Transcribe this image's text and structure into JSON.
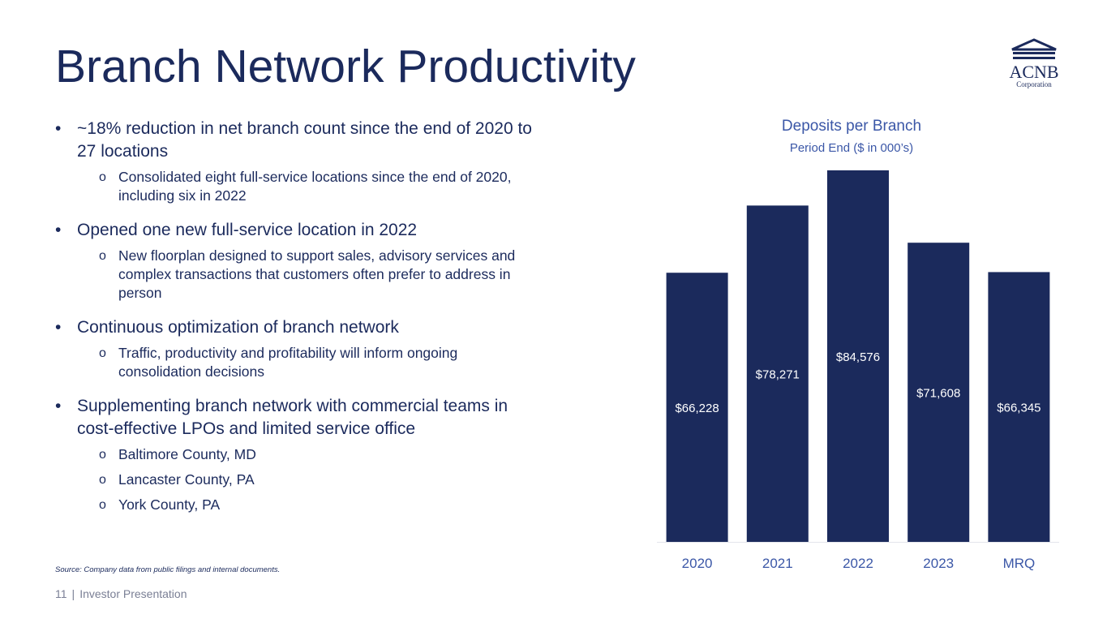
{
  "title": "Branch Network Productivity",
  "logo": {
    "name": "ACNB",
    "sub": "Corporation"
  },
  "bullets": [
    {
      "text": "~18% reduction in net branch count since the end of 2020 to 27 locations",
      "subs": [
        "Consolidated eight full-service locations since the end of 2020, including six in 2022"
      ]
    },
    {
      "text": "Opened one new full-service location in 2022",
      "subs": [
        "New floorplan designed to support sales, advisory services and complex transactions that customers often prefer to address in person"
      ]
    },
    {
      "text": "Continuous optimization of branch network",
      "subs": [
        "Traffic, productivity and profitability will inform ongoing consolidation decisions"
      ]
    },
    {
      "text": "Supplementing branch network with commercial teams in cost-effective LPOs and limited service office",
      "subs": [
        "Baltimore County, MD",
        "Lancaster County, PA",
        "York County, PA"
      ]
    }
  ],
  "source": "Source: Company data from public filings and internal documents.",
  "footer": {
    "page": "11",
    "label": "Investor Presentation"
  },
  "chart_data": {
    "type": "bar",
    "title": "Deposits per Branch",
    "subtitle": "Period End ($ in 000’s)",
    "categories": [
      "2020",
      "2021",
      "2022",
      "2023",
      "MRQ"
    ],
    "values": [
      66228,
      78271,
      84576,
      71608,
      66345
    ],
    "data_labels": [
      "$66,228",
      "$78,271",
      "$84,576",
      "$71,608",
      "$66,345"
    ],
    "ylim": [
      18000,
      84576
    ],
    "bar_color": "#1b2a5c",
    "label_color": "#ffffff",
    "tick_color": "#3b57a7",
    "grid": false,
    "legend": "none"
  }
}
